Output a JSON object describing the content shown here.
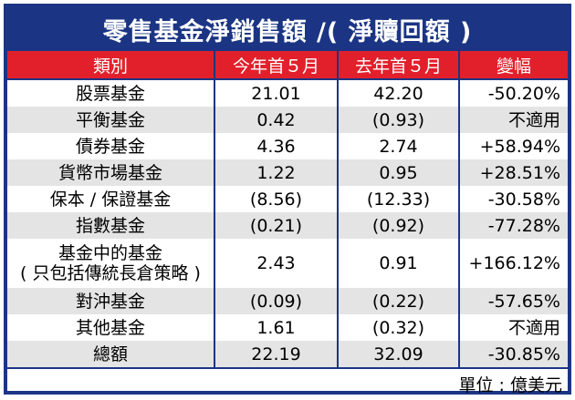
{
  "table": {
    "title": "零售基金淨銷售額 /( 淨贖回額 )",
    "columns": [
      "類別",
      "今年首５月",
      "去年首５月",
      "變幅"
    ],
    "rows": [
      [
        [
          "股票基金"
        ],
        "21.01",
        "42.20",
        "-50.20%"
      ],
      [
        [
          "平衡基金"
        ],
        "0.42",
        "(0.93)",
        "不適用"
      ],
      [
        [
          "債券基金"
        ],
        "4.36",
        "2.74",
        "+58.94%"
      ],
      [
        [
          "貨幣市場基金"
        ],
        "1.22",
        "0.95",
        "+28.51%"
      ],
      [
        [
          "保本 / 保證基金"
        ],
        "(8.56)",
        "(12.33)",
        "-30.58%"
      ],
      [
        [
          "指數基金"
        ],
        "(0.21)",
        "(0.92)",
        "-77.28%"
      ],
      [
        [
          "基金中的基金",
          "( 只包括傳統長倉策略 )"
        ],
        "2.43",
        "0.91",
        "+166.12%"
      ],
      [
        [
          "對沖基金"
        ],
        "(0.09)",
        "(0.22)",
        "-57.65%"
      ],
      [
        [
          "其他基金"
        ],
        "1.61",
        "(0.32)",
        "不適用"
      ],
      [
        [
          "總額"
        ],
        "22.19",
        "32.09",
        "-30.85%"
      ]
    ],
    "unit": "單位 : 億美元"
  }
}
